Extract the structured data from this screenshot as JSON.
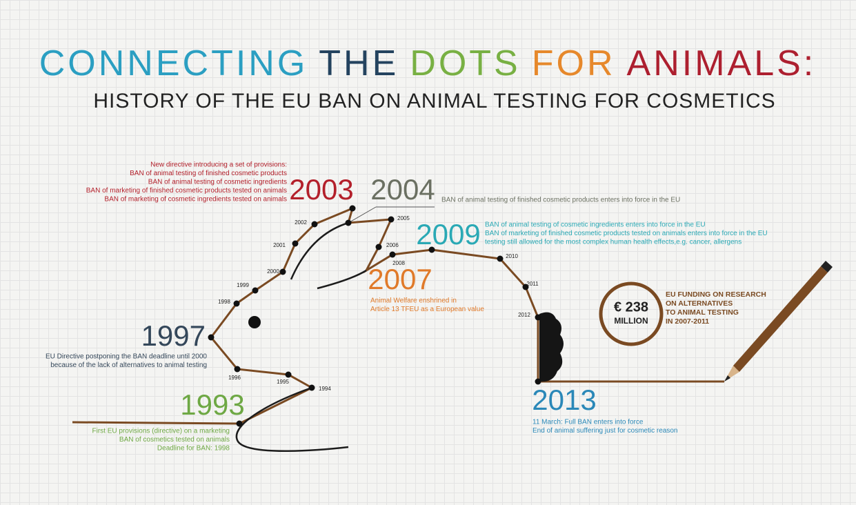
{
  "title": {
    "words": [
      {
        "text": "CONNECTING",
        "color": "#2b9fc2"
      },
      {
        "text": "THE",
        "color": "#24435f"
      },
      {
        "text": "DOTS",
        "color": "#78b043"
      },
      {
        "text": "FOR",
        "color": "#e6882b"
      },
      {
        "text": "ANIMALS:",
        "color": "#ad1f2f"
      }
    ]
  },
  "subtitle": "HISTORY OF THE EU BAN ON ANIMAL TESTING FOR COSMETICS",
  "minor_years": [
    "1994",
    "1995",
    "1996",
    "1998",
    "1999",
    "2000",
    "2001",
    "2002",
    "2005",
    "2006",
    "2008",
    "2010",
    "2011",
    "2012"
  ],
  "events": [
    {
      "year": "1993",
      "color": "#6ea844",
      "lines": [
        "First EU provisions (directive) on a marketing",
        "BAN of cosmetics tested on animals",
        "Deadline for BAN: 1998"
      ]
    },
    {
      "year": "1997",
      "color": "#34475a",
      "lines": [
        "EU Directive postponing the BAN deadline until 2000",
        "because of the lack of alternatives to animal testing"
      ]
    },
    {
      "year": "2003",
      "color": "#b3202b",
      "lines": [
        "New directive introducing a set of provisions:",
        "BAN of animal testing of finished cosmetic products",
        "BAN of animal testing of cosmetic ingredients",
        "BAN of marketing of finished cosmetic products tested on animals",
        "BAN of marketing of cosmetic ingredients tested on animals"
      ]
    },
    {
      "year": "2004",
      "color": "#6b7062",
      "lines": [
        "BAN of animal testing of finished cosmetic products enters into force in the EU"
      ]
    },
    {
      "year": "2007",
      "color": "#e07a2a",
      "lines": [
        "Animal Welfare enshrined in",
        "Article 13 TFEU as a European value"
      ]
    },
    {
      "year": "2009",
      "color": "#2aa9b5",
      "lines": [
        "BAN of animal testing of cosmetic ingredients enters into force in the EU",
        "BAN of marketing of finished cosmetic products tested on animals enters into force in the EU",
        "testing still allowed for the most complex human health effects,e.g. cancer, allergens"
      ]
    },
    {
      "year": "2013",
      "color": "#2a88b8",
      "lines": [
        "11 March: Full BAN enters into force",
        "End of animal suffering just for cosmetic reason"
      ]
    }
  ],
  "funding": {
    "amount": "€ 238",
    "unit": "MILLION",
    "lines": [
      "EU FUNDING ON RESEARCH",
      "ON ALTERNATIVES",
      "TO ANIMAL TESTING",
      "IN 2007-2011"
    ]
  }
}
